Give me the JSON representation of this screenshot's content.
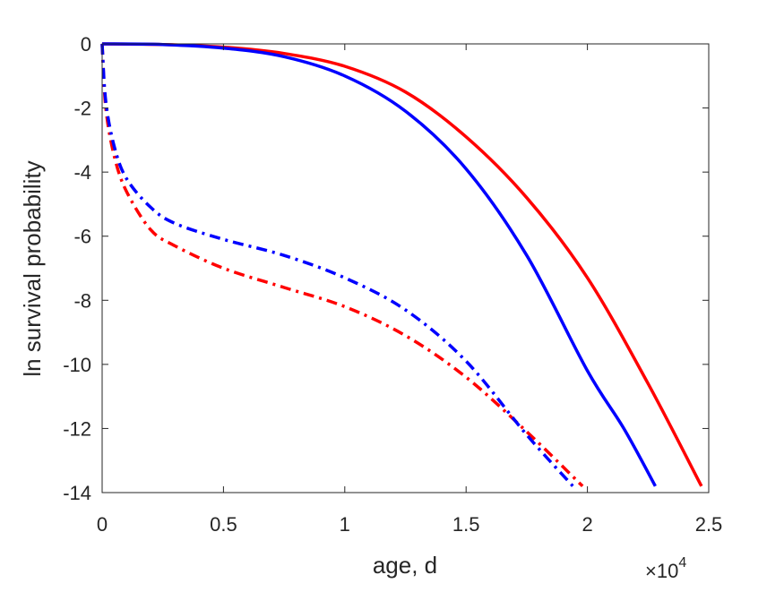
{
  "chart_data": {
    "type": "line",
    "title": "",
    "xlabel": "age, d",
    "ylabel": "ln survival probability",
    "x_exponent_label": "×10",
    "x_exponent_power": "4",
    "xlim": [
      0,
      25000
    ],
    "ylim": [
      -14,
      0
    ],
    "x_ticks": [
      0,
      5000,
      10000,
      15000,
      20000,
      25000
    ],
    "x_tick_labels": [
      "0",
      "0.5",
      "1",
      "1.5",
      "2",
      "2.5"
    ],
    "y_ticks": [
      0,
      -2,
      -4,
      -6,
      -8,
      -10,
      -12,
      -14
    ],
    "y_tick_labels": [
      "0",
      "-2",
      "-4",
      "-6",
      "-8",
      "-10",
      "-12",
      "-14"
    ],
    "grid": false,
    "legend": "none",
    "series": [
      {
        "color": "#ff0000",
        "style": "solid",
        "x": [
          0,
          2500,
          5000,
          7500,
          10000,
          12500,
          15000,
          17500,
          20000,
          22500,
          24700
        ],
        "y": [
          0,
          -0.02,
          -0.1,
          -0.3,
          -0.7,
          -1.5,
          -2.9,
          -4.8,
          -7.3,
          -10.6,
          -13.8
        ]
      },
      {
        "color": "#0000ff",
        "style": "solid",
        "x": [
          0,
          2500,
          5000,
          7500,
          10000,
          12500,
          15000,
          17500,
          20000,
          21500,
          22800
        ],
        "y": [
          0,
          -0.02,
          -0.13,
          -0.4,
          -1.0,
          -2.1,
          -3.9,
          -6.6,
          -10.2,
          -12.0,
          -13.8
        ]
      },
      {
        "color": "#ff0000",
        "style": "dashdot",
        "x": [
          0,
          150,
          500,
          1000,
          2000,
          3000,
          5000,
          7500,
          10000,
          12500,
          15000,
          17500,
          19800
        ],
        "y": [
          0,
          -2.0,
          -3.5,
          -4.6,
          -5.8,
          -6.3,
          -7.0,
          -7.6,
          -8.2,
          -9.1,
          -10.4,
          -12.1,
          -13.8
        ]
      },
      {
        "color": "#0000ff",
        "style": "dashdot",
        "x": [
          0,
          150,
          500,
          1000,
          2000,
          3000,
          5000,
          7500,
          10000,
          12500,
          15000,
          17500,
          19400
        ],
        "y": [
          0,
          -1.8,
          -3.2,
          -4.2,
          -5.1,
          -5.6,
          -6.1,
          -6.6,
          -7.3,
          -8.3,
          -9.9,
          -12.2,
          -13.8
        ]
      }
    ]
  }
}
